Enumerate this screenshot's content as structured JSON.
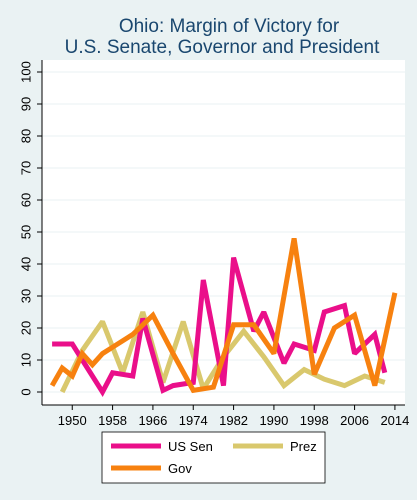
{
  "chart_data": {
    "type": "line",
    "title_lines": [
      "Ohio: Margin of Victory for",
      "U.S. Senate, Governor and President"
    ],
    "xlabel": "",
    "ylabel": "",
    "xlim": [
      1944,
      2016
    ],
    "ylim": [
      0,
      100
    ],
    "x_ticks": [
      1950,
      1958,
      1966,
      1974,
      1982,
      1990,
      1998,
      2006,
      2014
    ],
    "y_ticks": [
      0,
      10,
      20,
      30,
      40,
      50,
      60,
      70,
      80,
      90,
      100
    ],
    "grid": "horizontal",
    "legend_position": "bottom",
    "series": [
      {
        "name": "US Sen",
        "color": "#ea0f8a",
        "x": [
          1946,
          1950,
          1952,
          1956,
          1958,
          1962,
          1964,
          1968,
          1970,
          1974,
          1976,
          1980,
          1982,
          1986,
          1988,
          1992,
          1994,
          1998,
          2000,
          2004,
          2006,
          2010,
          2012
        ],
        "y": [
          15,
          15,
          10,
          0,
          6,
          5,
          23,
          0.5,
          2,
          3,
          35,
          2,
          42,
          19,
          25,
          9,
          15,
          13,
          25,
          27,
          12,
          18,
          6
        ]
      },
      {
        "name": "Prez",
        "color": "#d9c86d",
        "x": [
          1948,
          1952,
          1956,
          1960,
          1964,
          1968,
          1972,
          1976,
          1980,
          1984,
          1988,
          1992,
          1996,
          2000,
          2004,
          2008,
          2012
        ],
        "y": [
          0,
          13,
          22,
          6,
          25,
          3,
          22,
          1,
          11,
          19,
          11,
          2,
          7,
          4,
          2,
          5,
          3
        ]
      },
      {
        "name": "Gov",
        "color": "#f7810f",
        "x": [
          1946,
          1948,
          1950,
          1952,
          1954,
          1956,
          1958,
          1962,
          1966,
          1970,
          1974,
          1978,
          1982,
          1986,
          1990,
          1994,
          1998,
          2002,
          2006,
          2010,
          2014
        ],
        "y": [
          2,
          7.5,
          5,
          12,
          8.5,
          12,
          14,
          18,
          24,
          12,
          0.5,
          1.5,
          21,
          21,
          12,
          48,
          5.5,
          20,
          24,
          2,
          31
        ]
      }
    ]
  }
}
